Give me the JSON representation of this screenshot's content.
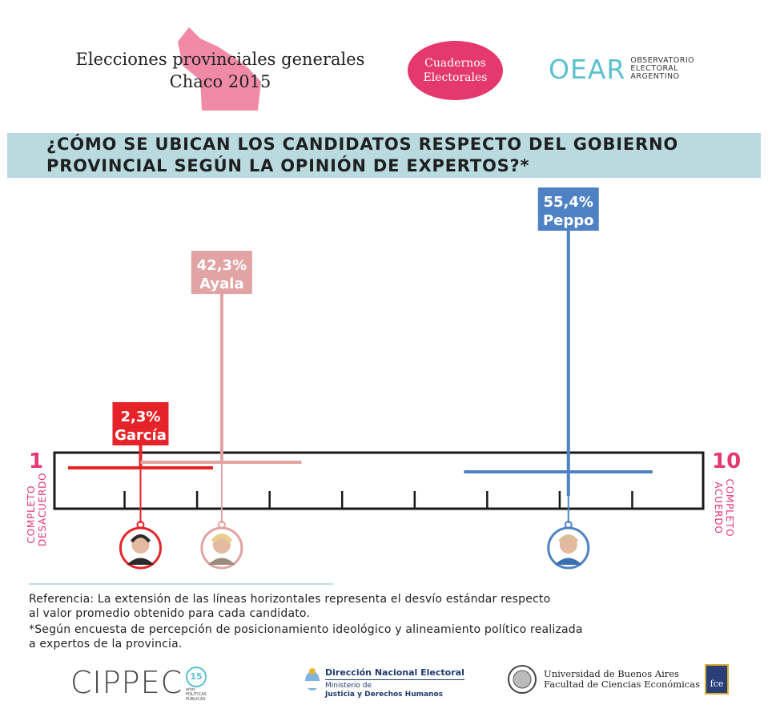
{
  "header": {
    "title_line1": "Elecciones provinciales generales",
    "title_line2": "Chaco 2015",
    "badge_line1": "Cuadernos",
    "badge_line2": "Electorales",
    "oear_mark": "OEAR",
    "oear_line1": "OBSERVATORIO",
    "oear_line2": "ELECTORAL",
    "oear_line3": "ARGENTINO"
  },
  "question": {
    "line1": "¿CÓMO SE UBICAN LOS CANDIDATOS RESPECTO DEL GOBIERNO",
    "line2": "PROVINCIAL SEGÚN LA OPINIÓN DE EXPERTOS?*"
  },
  "chart_data": {
    "type": "scatter",
    "scale_min_label": "1",
    "scale_max_label": "10",
    "scale_min_text_line1": "COMPLETO",
    "scale_min_text_line2": "DESACUERDO",
    "scale_max_text_line1": "COMPLETO",
    "scale_max_text_line2": "ACUERDO",
    "xlim": [
      1,
      10
    ],
    "series": [
      {
        "name": "García",
        "pct": "2,3%",
        "mean": 2.22,
        "sd_low": 1.22,
        "sd_high": 3.22,
        "color": "#e52429"
      },
      {
        "name": "Ayala",
        "pct": "42,3%",
        "mean": 3.34,
        "sd_low": 2.22,
        "sd_high": 4.44,
        "color": "#e1a3a3"
      },
      {
        "name": "Peppo",
        "pct": "55,4%",
        "mean": 8.12,
        "sd_low": 6.68,
        "sd_high": 9.28,
        "color": "#4f82c4"
      }
    ]
  },
  "notes": {
    "reference": "Referencia: La extensión de las líneas horizontales representa el desvío estándar respecto",
    "reference2": "al valor promedio obtenido para cada candidato.",
    "footnote": "*Según encuesta de percepción de posicionamiento ideológico y alineamiento político realizada",
    "footnote2": "a expertos de la provincia."
  },
  "footer": {
    "cippec": "CIPPEC",
    "cippec_years": "15",
    "cippec_years_word": "años",
    "cippec_sub1": "POLÍTICAS",
    "cippec_sub2": "PÚBLICAS",
    "dne_title": "Dirección Nacional Electoral",
    "dne_line2": "Ministerio de",
    "dne_line3": "Justicia y Derechos Humanos",
    "uba_line1": "Universidad de Buenos Aires",
    "uba_line2": "Facultad de Ciencias Económicas",
    "fce": "fce"
  }
}
